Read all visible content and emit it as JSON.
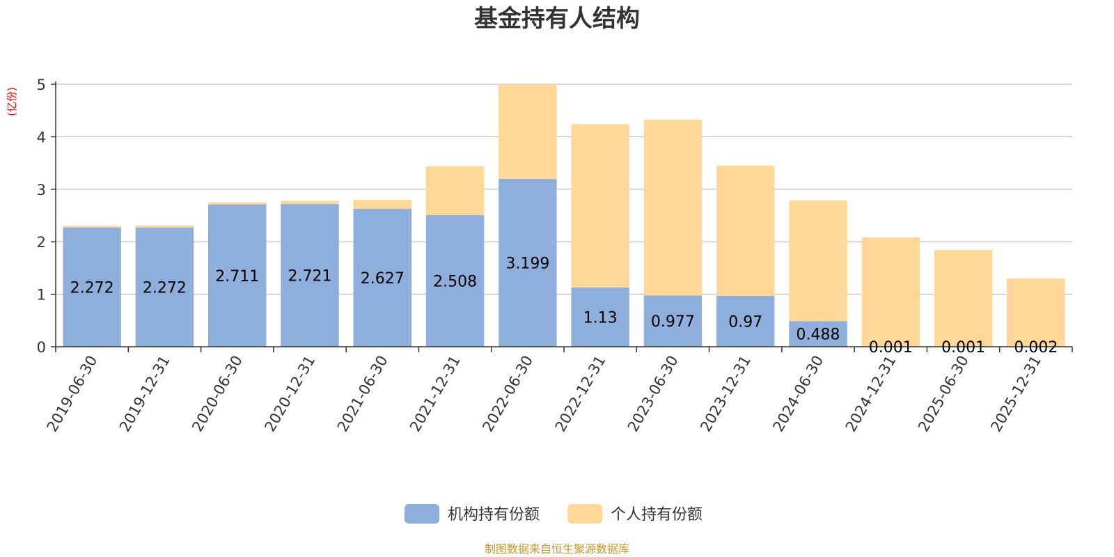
{
  "chart_data": {
    "type": "bar",
    "stacked": true,
    "title": "基金持有人结构",
    "unit_label": "(亿份)",
    "categories": [
      "2019-06-30",
      "2019-12-31",
      "2020-06-30",
      "2020-12-31",
      "2021-06-30",
      "2021-12-31",
      "2022-06-30",
      "2022-12-31",
      "2023-06-30",
      "2023-12-31",
      "2024-06-30",
      "2024-12-31",
      "2025-06-30",
      "2025-12-31"
    ],
    "series": [
      {
        "name": "机构持有份额",
        "color": "#8eaedb",
        "values": [
          2.272,
          2.272,
          2.711,
          2.721,
          2.627,
          2.508,
          3.199,
          1.13,
          0.977,
          0.97,
          0.488,
          0.001,
          0.001,
          0.002
        ],
        "labels": [
          "2.272",
          "2.272",
          "2.711",
          "2.721",
          "2.627",
          "2.508",
          "3.199",
          "1.13",
          "0.977",
          "0.97",
          "0.488",
          "0.001",
          "0.001",
          "0.002"
        ]
      },
      {
        "name": "个人持有份额",
        "color": "#ffd898",
        "values": [
          0.03,
          0.04,
          0.04,
          0.06,
          0.17,
          0.93,
          1.8,
          3.11,
          3.35,
          2.48,
          2.3,
          2.08,
          1.84,
          1.3
        ]
      }
    ],
    "ylim": [
      0,
      5
    ],
    "yticks": [
      0,
      1,
      2,
      3,
      4,
      5
    ],
    "grid": true,
    "legend_position": "bottom-center"
  },
  "source_note": "制图数据来自恒生聚源数据库"
}
